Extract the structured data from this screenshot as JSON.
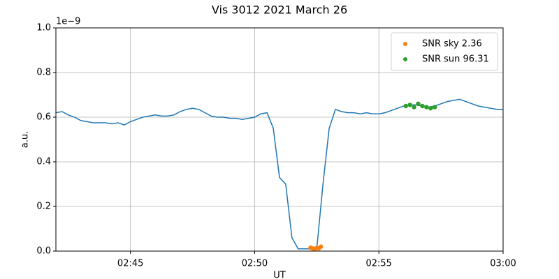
{
  "chart_data": {
    "type": "line",
    "title": "Vis 3012 2021 March 26",
    "x_label": "UT",
    "y_label": "a.u.",
    "y_offset_text": "1e−9",
    "xlim": [
      "02:42",
      "03:00"
    ],
    "xticks": [
      "02:45",
      "02:50",
      "02:55",
      "03:00"
    ],
    "ylim": [
      0,
      1
    ],
    "yticks": [
      {
        "value": 0,
        "label": "0.0"
      },
      0.2,
      0.4,
      0.6,
      0.8,
      {
        "value": 1,
        "label": "1.0"
      }
    ],
    "grid": true,
    "legend": "upper right",
    "series": [
      {
        "mode": "line",
        "color": "#1f77b4",
        "x": [
          "02:42:00",
          "02:42:15",
          "02:42:30",
          "02:42:45",
          "02:43:00",
          "02:43:15",
          "02:43:30",
          "02:43:45",
          "02:44:00",
          "02:44:15",
          "02:44:30",
          "02:44:45",
          "02:45:00",
          "02:45:15",
          "02:45:30",
          "02:45:45",
          "02:46:00",
          "02:46:15",
          "02:46:30",
          "02:46:45",
          "02:47:00",
          "02:47:15",
          "02:47:30",
          "02:47:45",
          "02:48:00",
          "02:48:15",
          "02:48:30",
          "02:48:45",
          "02:49:00",
          "02:49:15",
          "02:49:30",
          "02:49:45",
          "02:50:00",
          "02:50:15",
          "02:50:30",
          "02:50:45",
          "02:51:00",
          "02:51:15",
          "02:51:30",
          "02:51:45",
          "02:52:00",
          "02:52:15",
          "02:52:30",
          "02:52:45",
          "02:53:00",
          "02:53:15",
          "02:53:30",
          "02:53:45",
          "02:54:00",
          "02:54:15",
          "02:54:30",
          "02:54:45",
          "02:55:00",
          "02:55:15",
          "02:55:30",
          "02:55:45",
          "02:56:00",
          "02:56:15",
          "02:56:30",
          "02:56:45",
          "02:57:00",
          "02:57:15",
          "02:57:30",
          "02:57:45",
          "02:58:00",
          "02:58:15",
          "02:58:30",
          "02:58:45",
          "02:59:00",
          "02:59:15",
          "02:59:30",
          "02:59:45",
          "03:00:00"
        ],
        "values": [
          0.62,
          0.625,
          0.61,
          0.6,
          0.585,
          0.58,
          0.575,
          0.575,
          0.575,
          0.57,
          0.575,
          0.565,
          0.58,
          0.59,
          0.6,
          0.605,
          0.61,
          0.605,
          0.605,
          0.61,
          0.625,
          0.635,
          0.64,
          0.635,
          0.62,
          0.605,
          0.6,
          0.6,
          0.595,
          0.595,
          0.59,
          0.595,
          0.6,
          0.615,
          0.62,
          0.55,
          0.33,
          0.3,
          0.06,
          0.01,
          0.01,
          0.01,
          0.01,
          0.3,
          0.55,
          0.635,
          0.625,
          0.62,
          0.62,
          0.615,
          0.62,
          0.615,
          0.615,
          0.62,
          0.63,
          0.64,
          0.65,
          0.655,
          0.655,
          0.65,
          0.645,
          0.65,
          0.66,
          0.67,
          0.675,
          0.68,
          0.67,
          0.66,
          0.65,
          0.645,
          0.64,
          0.635,
          0.635
        ]
      },
      {
        "mode": "scatter",
        "name": "SNR sky 2.36",
        "color": "#ff7f0e",
        "x": [
          "02:52:15",
          "02:52:20",
          "02:52:25",
          "02:52:30",
          "02:52:35",
          "02:52:40"
        ],
        "values": [
          0.015,
          0.012,
          0.01,
          0.014,
          0.012,
          0.02
        ]
      },
      {
        "mode": "scatter",
        "name": "SNR sun 96.31",
        "color": "#2ca02c",
        "x": [
          "02:56:05",
          "02:56:15",
          "02:56:25",
          "02:56:35",
          "02:56:45",
          "02:56:55",
          "02:57:05",
          "02:57:15"
        ],
        "values": [
          0.65,
          0.655,
          0.645,
          0.66,
          0.65,
          0.645,
          0.64,
          0.645
        ]
      }
    ]
  }
}
